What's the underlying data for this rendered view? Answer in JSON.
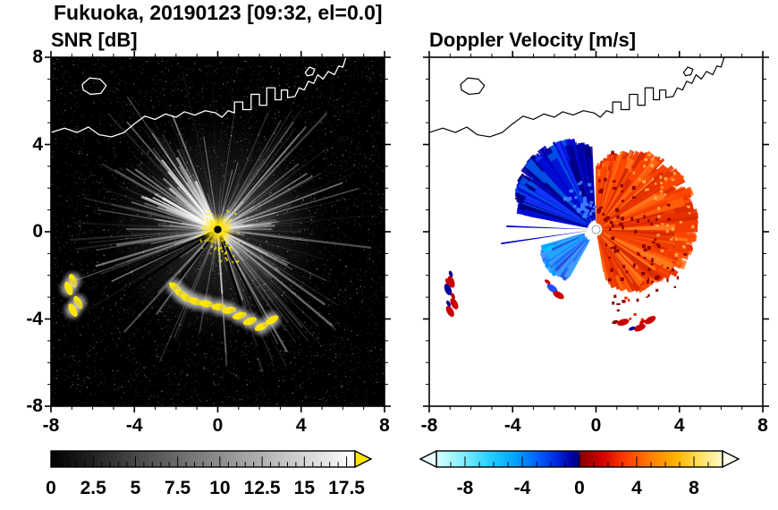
{
  "header": {
    "title": "Fukuoka, 20190123 [09:32, el=0.0]"
  },
  "panels": {
    "snr": {
      "title": "SNR [dB]"
    },
    "vel": {
      "title": "Doppler Velocity [m/s]"
    }
  },
  "axes": {
    "xlim": [
      -8,
      8
    ],
    "ylim": [
      -8,
      8
    ],
    "major_tick_values": [
      -8,
      -4,
      0,
      4,
      8
    ],
    "tick_labels": [
      "-8",
      "-4",
      "0",
      "4",
      "8"
    ],
    "minor_step": 1
  },
  "colorbars": {
    "snr": {
      "min": 0,
      "max": 18,
      "tick_values": [
        0,
        2.5,
        5,
        7.5,
        10,
        12.5,
        15,
        17.5
      ],
      "tick_labels": [
        "0",
        "2.5",
        "5",
        "7.5",
        "10",
        "12.5",
        "15",
        "17.5"
      ],
      "minor_step": 0.5,
      "gradient_stops": [
        [
          "0",
          "#000000"
        ],
        [
          "1",
          "#ffffff"
        ]
      ],
      "over_arrow_color": "#ffe600"
    },
    "vel": {
      "min": -10,
      "max": 10,
      "tick_values": [
        -8,
        -4,
        0,
        4,
        8
      ],
      "tick_labels": [
        "-8",
        "-4",
        "0",
        "4",
        "8"
      ],
      "minor_step": 1,
      "gradient_stops": [
        [
          "0",
          "#d8ffff"
        ],
        [
          "0.08",
          "#8ef2ff"
        ],
        [
          "0.18",
          "#2bd2ff"
        ],
        [
          "0.27",
          "#00a6ff"
        ],
        [
          "0.35",
          "#0064ff"
        ],
        [
          "0.42",
          "#0028e0"
        ],
        [
          "0.475",
          "#0000a0"
        ],
        [
          "0.4999",
          "#000080"
        ],
        [
          "0.5001",
          "#800000"
        ],
        [
          "0.525",
          "#9c0000"
        ],
        [
          "0.58",
          "#d40000"
        ],
        [
          "0.66",
          "#ff3c00"
        ],
        [
          "0.75",
          "#ff7f00"
        ],
        [
          "0.84",
          "#ffb400"
        ],
        [
          "0.92",
          "#ffe060"
        ],
        [
          "1",
          "#fff8c8"
        ]
      ],
      "under_arrow_color": "#eaffff",
      "over_arrow_color": "#fffdf0"
    }
  },
  "chart_data": {
    "type": "heatmap",
    "layout": "two radar PPI panels side by side with shared square axes",
    "title": "Fukuoka, 20190123 [09:32, el=0.0]",
    "x_range": [
      -8,
      8
    ],
    "y_range": [
      -8,
      8
    ],
    "x_ticks": [
      -8,
      -4,
      0,
      4,
      8
    ],
    "y_ticks": [
      -8,
      -4,
      0,
      4,
      8
    ],
    "panels": [
      {
        "title": "SNR [dB]",
        "colormap": "grayscale, black(0 dB) to white(18 dB), yellow arrow for >18 dB",
        "colorbar_range": [
          0,
          18
        ],
        "colorbar_ticks": [
          0,
          2.5,
          5,
          7.5,
          10,
          12.5,
          15,
          17.5
        ],
        "features": [
          "black background with sparse speckle noise",
          "bright radial echo streaks emanating from the radar at the origin",
          "saturated yellow echoes (>18 dB) at the radar site",
          "chain of yellow ship/clutter echoes along an arc in the south to southwest",
          "coastline of the bay drawn as a white outline across the north"
        ]
      },
      {
        "title": "Doppler Velocity [m/s]",
        "colormap": "cyan-blue for negative (toward radar), dark navy/dark red at zero crossing, red-orange-yellow for positive (away)",
        "colorbar_range": [
          -10,
          10
        ],
        "colorbar_ticks": [
          -8,
          -4,
          0,
          4,
          8
        ],
        "features": [
          "white background",
          "dark blue fan of negative velocities northwest of the radar",
          "broad orange-red fan of positive velocities east through southeast",
          "cyan-blue patch southwest of the radar",
          "isolated red/blue ship echoes along the southern arc",
          "coastline drawn as a black outline across the north"
        ]
      }
    ],
    "render": {
      "center": [
        0,
        0.1
      ],
      "coastline_main": [
        [
          -8,
          4.55
        ],
        [
          -7.35,
          4.75
        ],
        [
          -6.75,
          4.55
        ],
        [
          -6.2,
          4.8
        ],
        [
          -5.7,
          4.45
        ],
        [
          -5.1,
          4.35
        ],
        [
          -4.5,
          4.55
        ],
        [
          -4.0,
          4.95
        ],
        [
          -3.5,
          5.3
        ],
        [
          -3.0,
          5.15
        ],
        [
          -2.5,
          5.4
        ],
        [
          -2.0,
          5.25
        ],
        [
          -1.6,
          5.5
        ],
        [
          -1.1,
          5.35
        ],
        [
          -0.6,
          5.55
        ],
        [
          -0.1,
          5.45
        ],
        [
          0.2,
          5.25
        ],
        [
          0.5,
          5.55
        ],
        [
          0.8,
          5.45
        ],
        [
          0.8,
          5.95
        ],
        [
          1.2,
          5.95
        ],
        [
          1.2,
          5.6
        ],
        [
          1.6,
          5.6
        ],
        [
          1.6,
          6.3
        ],
        [
          2.0,
          6.3
        ],
        [
          2.0,
          5.8
        ],
        [
          2.35,
          5.8
        ],
        [
          2.35,
          6.6
        ],
        [
          2.75,
          6.6
        ],
        [
          2.75,
          6.05
        ],
        [
          3.05,
          6.05
        ],
        [
          3.05,
          6.5
        ],
        [
          3.35,
          6.5
        ],
        [
          3.35,
          6.15
        ],
        [
          3.7,
          6.2
        ],
        [
          3.9,
          6.6
        ],
        [
          4.15,
          6.5
        ],
        [
          4.35,
          6.9
        ],
        [
          4.6,
          6.8
        ],
        [
          4.8,
          7.2
        ],
        [
          5.05,
          7.0
        ],
        [
          5.3,
          7.35
        ],
        [
          5.6,
          7.2
        ],
        [
          5.8,
          7.6
        ],
        [
          6.0,
          7.55
        ],
        [
          6.15,
          8.0
        ]
      ],
      "island": [
        [
          -6.5,
          6.75
        ],
        [
          -6.15,
          7.05
        ],
        [
          -5.65,
          7.0
        ],
        [
          -5.35,
          6.7
        ],
        [
          -5.6,
          6.35
        ],
        [
          -6.1,
          6.3
        ],
        [
          -6.45,
          6.5
        ]
      ],
      "islet": [
        [
          4.2,
          7.3
        ],
        [
          4.4,
          7.55
        ],
        [
          4.65,
          7.45
        ],
        [
          4.55,
          7.2
        ],
        [
          4.3,
          7.15
        ]
      ],
      "snr": {
        "yellow": "#ffe600",
        "glow_sectors": [
          {
            "a1": 112,
            "a2": 155,
            "r": 3.4,
            "alpha": 0.32
          },
          {
            "a1": 2,
            "a2": 50,
            "r": 4.3,
            "alpha": 0.17
          },
          {
            "a1": -62,
            "a2": -30,
            "r": 4.6,
            "alpha": 0.15
          },
          {
            "a1": 150,
            "a2": 178,
            "r": 2.6,
            "alpha": 0.14
          }
        ],
        "ray_sectors": [
          {
            "a1": 112,
            "a2": 160
          },
          {
            "a1": -12,
            "a2": 62
          },
          {
            "a1": -75,
            "a2": -22
          },
          {
            "a1": 160,
            "a2": 200
          }
        ],
        "black_ray_angles": [
          204,
          213,
          231,
          288,
          298
        ],
        "ship_left_group": [
          [
            -6.95,
            -2.25
          ],
          [
            -7.15,
            -2.6
          ],
          [
            -6.7,
            -3.25
          ],
          [
            -6.95,
            -3.6
          ]
        ],
        "ship_chain": [
          [
            -2.05,
            -2.55
          ],
          [
            -1.75,
            -2.85
          ],
          [
            -1.45,
            -3.05
          ],
          [
            -1.05,
            -3.2
          ],
          [
            -0.55,
            -3.3
          ],
          [
            0.05,
            -3.45
          ],
          [
            0.55,
            -3.6
          ],
          [
            1.05,
            -3.85
          ],
          [
            1.55,
            -4.1
          ],
          [
            2.1,
            -4.35
          ],
          [
            2.6,
            -4.05
          ]
        ]
      },
      "vel": {
        "blue_fan": {
          "a1": 95,
          "a2": 168,
          "rmin": 0.5,
          "rmax": 4.6,
          "colors": [
            "#000082",
            "#0000b4",
            "#000ad2",
            "#1432ff",
            "#0050e6"
          ]
        },
        "blue_rays": [
          {
            "angle": 178,
            "r": 4.3
          },
          {
            "angle": 188,
            "r": 4.6
          }
        ],
        "cyan_fan": {
          "a1": 198,
          "a2": 238,
          "rmin": 0.7,
          "rmax": 3.0,
          "colors": [
            "#00c8ff",
            "#00a0ff",
            "#289cff",
            "#1e6eff",
            "#4b96ff",
            "#2850dc"
          ]
        },
        "orange_fan": {
          "a1": -78,
          "a2": 88,
          "rmin": 0.35,
          "rmax": 5.0,
          "colors": [
            "#ff4600",
            "#f03c00",
            "#ff5f0a",
            "#e63200",
            "#ff781e",
            "#d72800"
          ],
          "dark": "#8c0000",
          "light": "#ffbe50"
        },
        "ships": [
          {
            "x": -6.95,
            "y": -2.3,
            "c": "#c80000",
            "c2": "#000096"
          },
          {
            "x": -7.1,
            "y": -2.65,
            "c": "#000096",
            "c2": "#c80000"
          },
          {
            "x": -6.8,
            "y": -3.3,
            "c": "#c80000",
            "c2": "#b40000"
          },
          {
            "x": -7.0,
            "y": -3.65,
            "c": "#c80000",
            "c2": "#000096"
          },
          {
            "x": -2.1,
            "y": -2.6,
            "c": "#1e50ff",
            "c2": "#c80000"
          },
          {
            "x": -1.8,
            "y": -2.9,
            "c": "#c80000",
            "c2": "#1e50ff"
          },
          {
            "x": 1.3,
            "y": -4.15,
            "c": "#c80000",
            "c2": "#8c0000"
          },
          {
            "x": 2.1,
            "y": -4.4,
            "c": "#c80000",
            "c2": "#000096"
          },
          {
            "x": 2.6,
            "y": -4.05,
            "c": "#c80000",
            "c2": "#c80000"
          }
        ]
      }
    }
  }
}
